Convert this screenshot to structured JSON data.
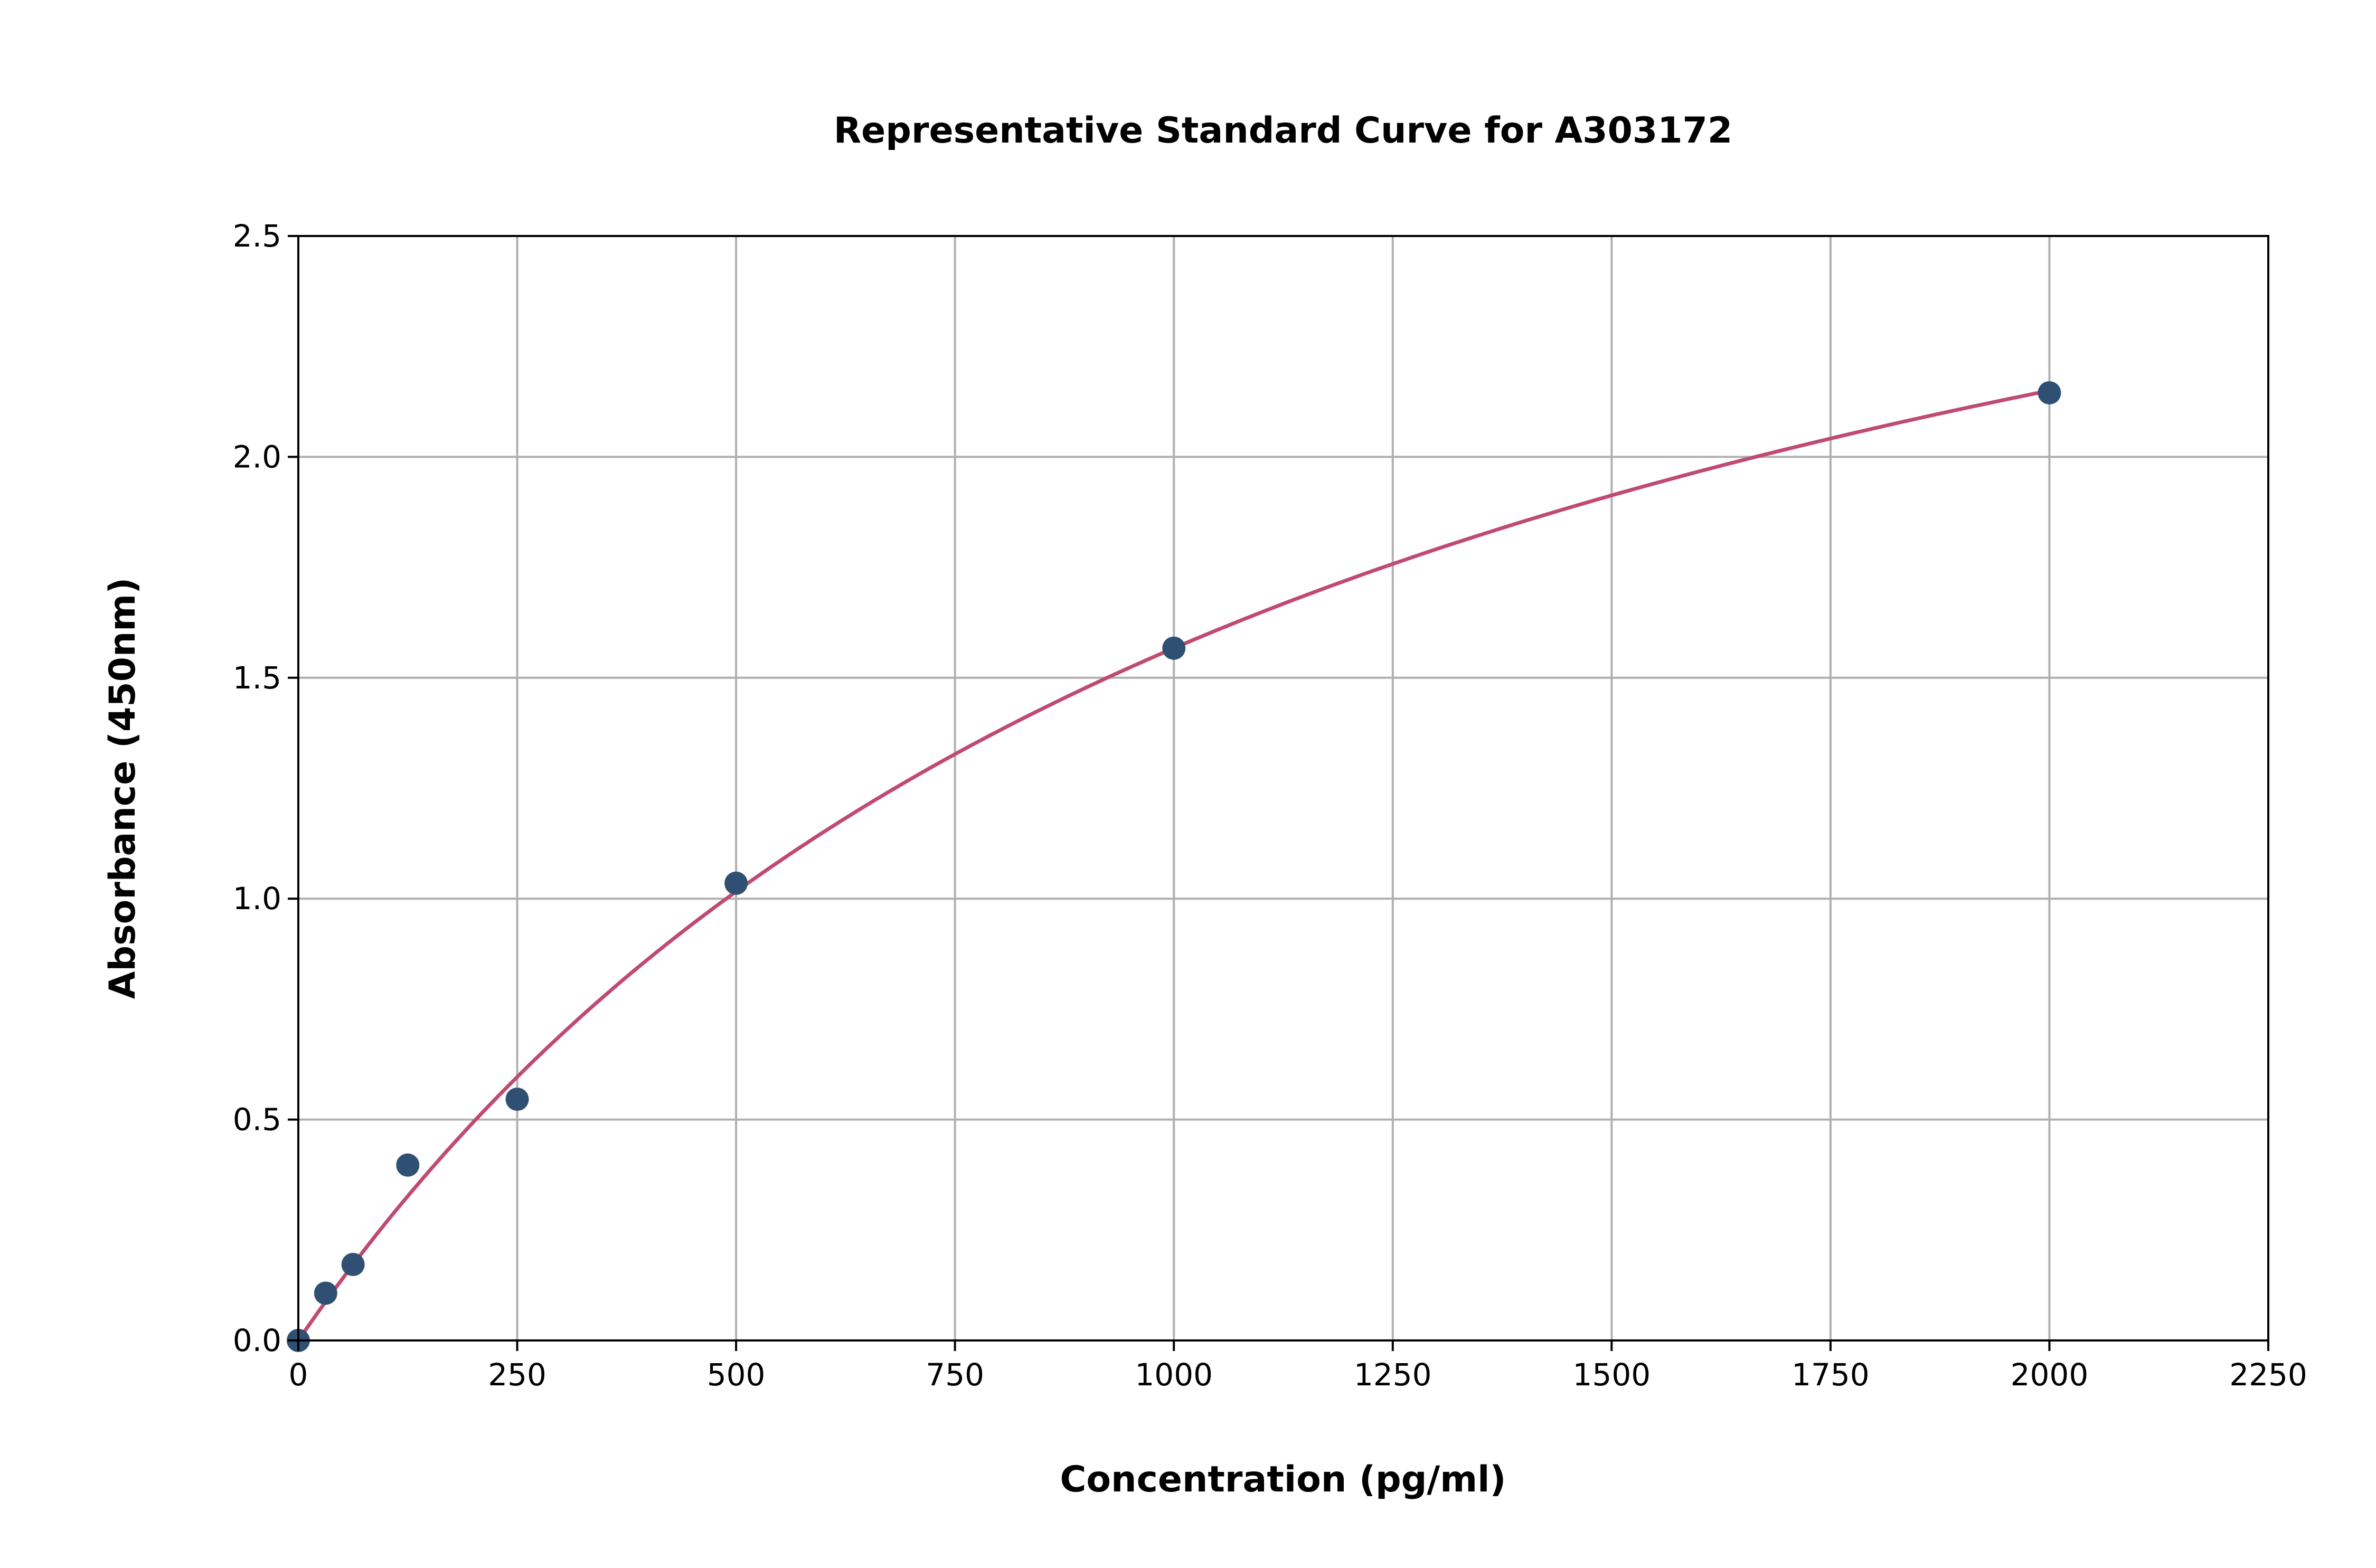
{
  "chart_data": {
    "type": "scatter",
    "title": "Representative Standard Curve for A303172",
    "xlabel": "Concentration (pg/ml)",
    "ylabel": "Absorbance (450nm)",
    "xlim": [
      0,
      2250
    ],
    "ylim": [
      0,
      2.5
    ],
    "xticks": [
      "0",
      "250",
      "500",
      "750",
      "1000",
      "1250",
      "1500",
      "1750",
      "2000",
      "2250"
    ],
    "yticks": [
      "0.0",
      "0.5",
      "1.0",
      "1.5",
      "2.0",
      "2.5"
    ],
    "grid": true,
    "series": [
      {
        "type": "scatter",
        "x": [
          0,
          31.25,
          62.5,
          125,
          250,
          500,
          1000,
          2000
        ],
        "y": [
          0.0,
          0.107,
          0.172,
          0.397,
          0.546,
          1.035,
          1.567,
          2.145
        ],
        "color": "#2f5072"
      },
      {
        "type": "line",
        "description_of_fit": "fitted curve",
        "color": "#c04a70"
      }
    ]
  }
}
